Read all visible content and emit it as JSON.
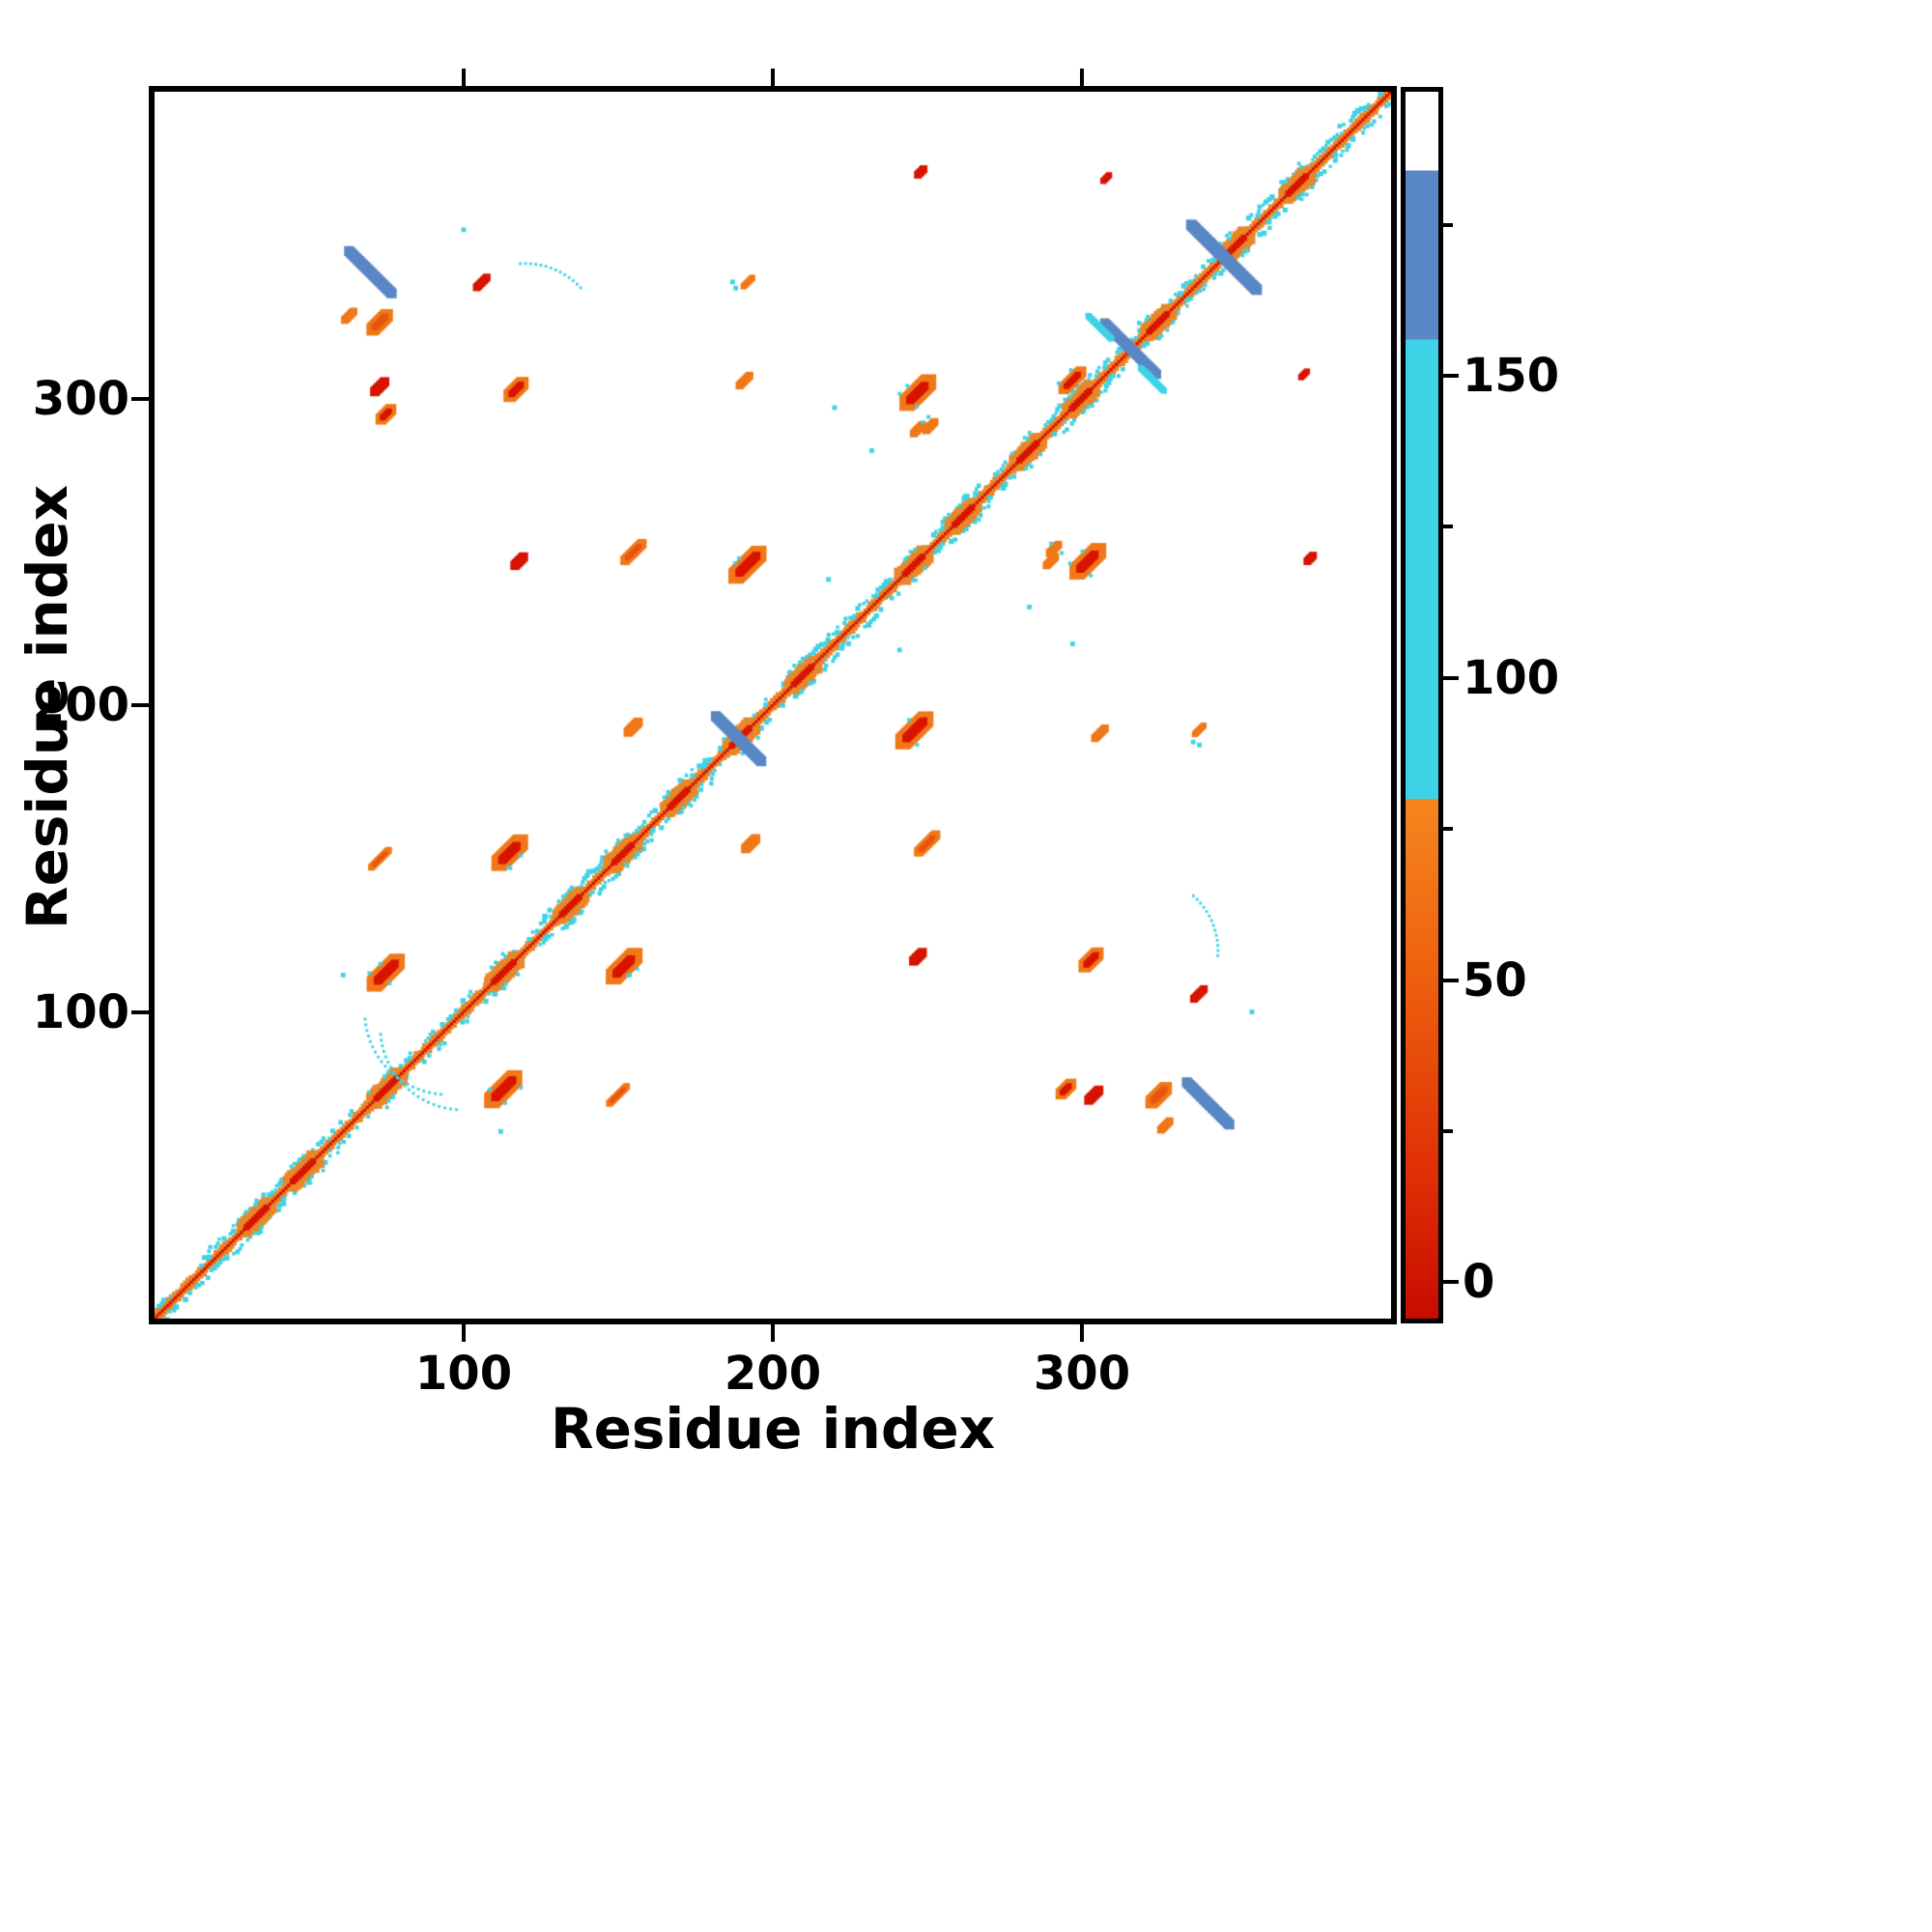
{
  "chart_data": {
    "type": "heatmap",
    "subtype": "residue-contact-map",
    "title": "",
    "xlabel": "Residue index",
    "ylabel": "Residue index",
    "x_range": [
      0,
      400
    ],
    "y_range": [
      0,
      400
    ],
    "x_ticks": [
      100,
      200,
      300
    ],
    "y_ticks": [
      100,
      200,
      300
    ],
    "grid": false,
    "symmetric": true,
    "palette": {
      "red": "#d81400",
      "orange": "#f07818",
      "deep_orange": "#e85510",
      "cyan": "#3ed3e6",
      "blue": "#5a87c5",
      "diag_orange": "#e8872a",
      "white": "#ffffff",
      "axis": "#000000"
    },
    "colorbar": {
      "vmin": -6,
      "vmax": 197,
      "major_ticks": [
        {
          "v": 0,
          "label": "0"
        },
        {
          "v": 50,
          "label": "50"
        },
        {
          "v": 100,
          "label": "100"
        },
        {
          "v": 150,
          "label": "150"
        }
      ],
      "minor_ticks": [
        25,
        75,
        125,
        175
      ],
      "stops": [
        {
          "v": 197,
          "c": "#ffffff"
        },
        {
          "v": 184,
          "c": "#ffffff"
        },
        {
          "v": 184,
          "c": "#5a87c5"
        },
        {
          "v": 156,
          "c": "#5a87c5"
        },
        {
          "v": 156,
          "c": "#3ed3e6"
        },
        {
          "v": 80,
          "c": "#3ed3e6"
        },
        {
          "v": 80,
          "c": "#f5861f"
        },
        {
          "v": 48,
          "c": "#ec5c0d"
        },
        {
          "v": 18,
          "c": "#e02f05"
        },
        {
          "v": -6,
          "c": "#c60c00"
        }
      ]
    },
    "diagonal": {
      "extent": [
        0,
        400
      ],
      "band_color": "diag_orange",
      "core_color": "red",
      "speck_color": "cyan",
      "band_width_units": 2.6,
      "cyan_zones": [
        [
          18,
          60
        ],
        [
          125,
          178
        ],
        [
          205,
          232
        ],
        [
          255,
          270
        ],
        [
          290,
          312
        ],
        [
          355,
          395
        ]
      ],
      "bulges": [
        33,
        48,
        75,
        113,
        135,
        152,
        170,
        190,
        210,
        246,
        262,
        283,
        300,
        325,
        350,
        370
      ]
    },
    "features": [
      {
        "x": 70,
        "y": 341,
        "len": 20,
        "w": 3.2,
        "orient": "anti",
        "outer": "blue",
        "inner": "blue",
        "mirror": true
      },
      {
        "x": 346,
        "y": 346,
        "len": 30,
        "w": 3.4,
        "orient": "anti",
        "outer": "blue",
        "inner": "blue",
        "mirror": false
      },
      {
        "x": 189,
        "y": 189,
        "len": 21,
        "w": 3.2,
        "orient": "anti",
        "outer": "blue",
        "inner": "blue",
        "mirror": false
      },
      {
        "x": 320,
        "y": 312,
        "len": 13,
        "w": 3.0,
        "orient": "anti",
        "outer": "blue",
        "inner": "blue",
        "mirror": true
      },
      {
        "x": 306,
        "y": 323,
        "len": 11,
        "w": 2.0,
        "orient": "anti",
        "outer": "cyan",
        "inner": "cyan",
        "mirror": true
      },
      {
        "x": 75,
        "y": 113,
        "len": 11,
        "w": 5.0,
        "orient": "par",
        "outer": "orange",
        "inner": "red",
        "mirror": true,
        "specks": 3
      },
      {
        "x": 115,
        "y": 152,
        "len": 10,
        "w": 5.0,
        "orient": "par",
        "outer": "orange",
        "inner": "red",
        "mirror": true,
        "specks": 3
      },
      {
        "x": 192,
        "y": 246,
        "len": 11,
        "w": 5.0,
        "orient": "par",
        "outer": "orange",
        "inner": "red",
        "mirror": true,
        "specks": 2
      },
      {
        "x": 247,
        "y": 302,
        "len": 10,
        "w": 5.0,
        "orient": "par",
        "outer": "orange",
        "inner": "red",
        "mirror": true,
        "specks": 3
      },
      {
        "x": 297,
        "y": 306,
        "len": 8,
        "w": 3.5,
        "orient": "par",
        "outer": "orange",
        "inner": "red",
        "mirror": false,
        "specks": 2
      },
      {
        "x": 303,
        "y": 117,
        "len": 6,
        "w": 4.0,
        "orient": "par",
        "outer": "orange",
        "inner": "red",
        "mirror": true
      },
      {
        "x": 325,
        "y": 73,
        "len": 7,
        "w": 4.0,
        "orient": "par",
        "outer": "orange",
        "inner": "deep_orange",
        "mirror": true
      },
      {
        "x": 295,
        "y": 75,
        "len": 5,
        "w": 3.5,
        "orient": "par",
        "outer": "orange",
        "inner": "red",
        "mirror": true
      },
      {
        "x": 63,
        "y": 327,
        "len": 4,
        "w": 2.5,
        "orient": "par",
        "outer": "orange",
        "inner": "orange",
        "mirror": true
      },
      {
        "x": 155,
        "y": 250,
        "len": 8,
        "w": 3.0,
        "orient": "par",
        "outer": "orange",
        "inner": "deep_orange",
        "mirror": true
      },
      {
        "x": 155,
        "y": 193,
        "len": 5,
        "w": 3.0,
        "orient": "par",
        "outer": "orange",
        "inner": "orange",
        "mirror": true
      },
      {
        "x": 118,
        "y": 247,
        "len": 4,
        "w": 3.0,
        "orient": "par",
        "outer": "red",
        "inner": "red",
        "mirror": true
      },
      {
        "x": 73,
        "y": 304,
        "len": 5,
        "w": 3.0,
        "orient": "par",
        "outer": "red",
        "inner": "red",
        "mirror": true
      },
      {
        "x": 191,
        "y": 306,
        "len": 5,
        "w": 2.5,
        "orient": "par",
        "outer": "orange",
        "inner": "orange",
        "mirror": true
      },
      {
        "x": 192,
        "y": 338,
        "len": 4,
        "w": 2.0,
        "orient": "par",
        "outer": "orange",
        "inner": "orange",
        "mirror": true
      },
      {
        "x": 247,
        "y": 290,
        "len": 4,
        "w": 2.5,
        "orient": "par",
        "outer": "orange",
        "inner": "orange",
        "mirror": true
      },
      {
        "x": 150,
        "y": 73,
        "len": 8,
        "w": 2.2,
        "orient": "par",
        "outer": "orange",
        "inner": "deep_orange",
        "mirror": true
      },
      {
        "x": 106,
        "y": 338,
        "len": 5,
        "w": 2.5,
        "orient": "par",
        "outer": "red",
        "inner": "red",
        "mirror": true
      },
      {
        "x": 374,
        "y": 248,
        "len": 3,
        "w": 2.5,
        "orient": "par",
        "outer": "red",
        "inner": "red",
        "mirror": true
      },
      {
        "x": 372,
        "y": 308,
        "len": 3,
        "w": 2.0,
        "orient": "par",
        "outer": "red",
        "inner": "red",
        "mirror": true
      },
      {
        "x": 291,
        "y": 251,
        "len": 4,
        "w": 2.5,
        "orient": "par",
        "outer": "orange",
        "inner": "orange",
        "mirror": true,
        "specks": 2
      }
    ],
    "dots": [
      {
        "x": 100,
        "y": 355
      },
      {
        "x": 187,
        "y": 338
      },
      {
        "x": 241,
        "y": 218
      },
      {
        "x": 336,
        "y": 188
      },
      {
        "x": 220,
        "y": 297
      },
      {
        "x": 61,
        "y": 112
      },
      {
        "x": 283,
        "y": 232
      }
    ],
    "arcs": [
      {
        "cx": 95,
        "cy": 100,
        "r": 27,
        "deg1": 185,
        "deg2": 268,
        "color": "cyan",
        "mirror": true
      },
      {
        "cx": 320,
        "cy": 120,
        "r": 24,
        "deg1": -8,
        "deg2": 50,
        "color": "cyan",
        "mirror": true
      }
    ]
  }
}
